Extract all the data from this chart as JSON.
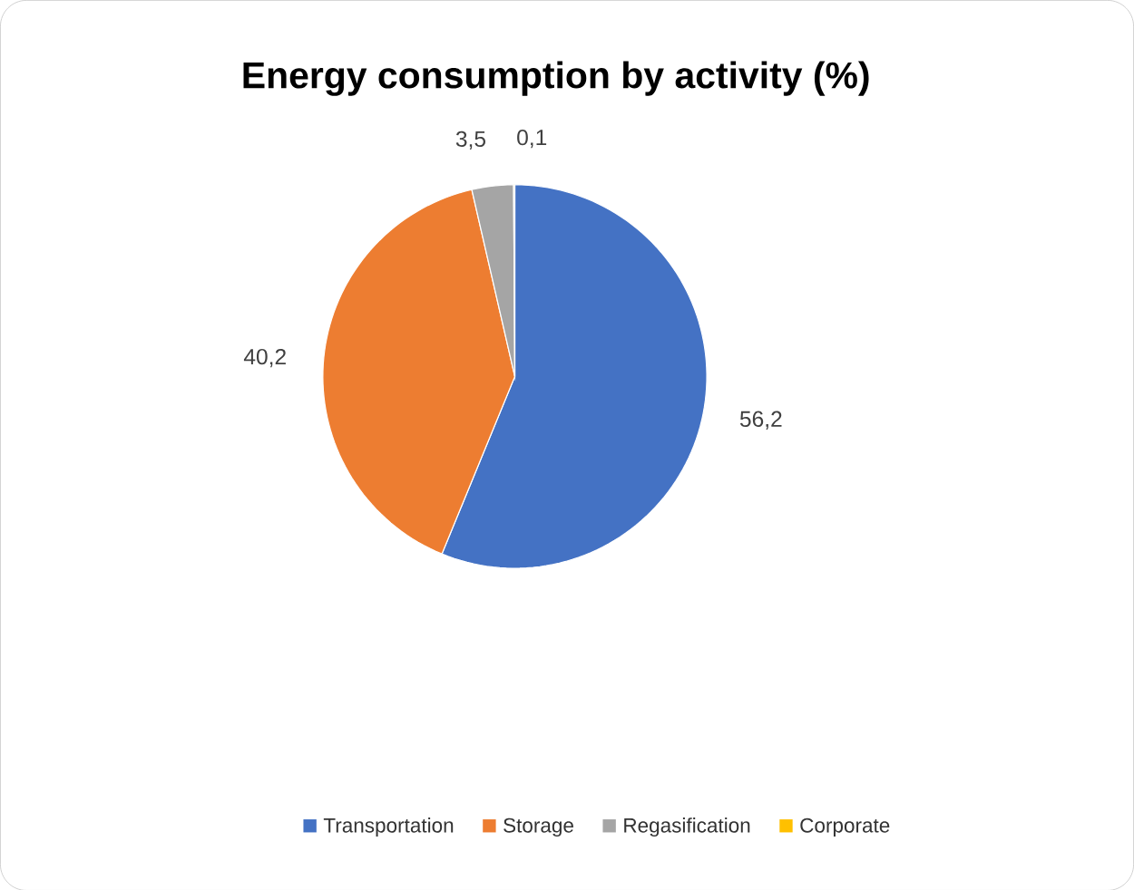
{
  "chart_data": {
    "type": "pie",
    "title": "Energy consumption by activity (%)",
    "categories": [
      "Transportation",
      "Storage",
      "Regasification",
      "Corporate"
    ],
    "values": [
      56.2,
      40.2,
      3.5,
      0.1
    ],
    "colors": [
      "#4472c4",
      "#ed7d31",
      "#a5a5a5",
      "#ffc000"
    ],
    "value_labels": [
      "56,2",
      "40,2",
      "3,5",
      "0,1"
    ],
    "legend": "bottom"
  }
}
